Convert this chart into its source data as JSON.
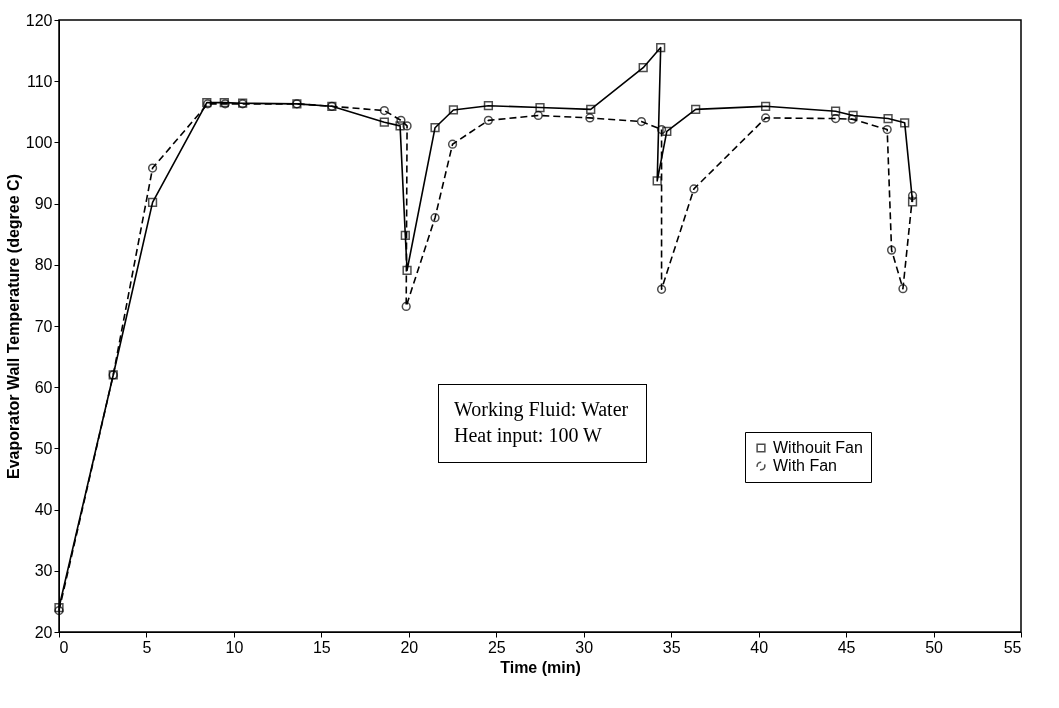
{
  "chart_data": {
    "type": "line",
    "xlabel": "Time (min)",
    "ylabel": "Evaporator Wall Temperature (degree C)",
    "xlim": [
      0,
      55
    ],
    "xticks": [
      0,
      5,
      10,
      15,
      20,
      25,
      30,
      35,
      40,
      45,
      50,
      55
    ],
    "ylim": [
      20,
      120
    ],
    "yticks": [
      20,
      30,
      40,
      50,
      60,
      70,
      80,
      90,
      100,
      110,
      120
    ],
    "grid": false,
    "legend": "bottom right",
    "annotations": [
      "Working Fluid: Water",
      "Heat input: 100 W"
    ],
    "series": [
      {
        "name": "Withouit Fan",
        "color": "#000000",
        "marker": "square",
        "line_style": "solid",
        "x": [
          0,
          3.1,
          5.35,
          8.45,
          9.45,
          10.5,
          13.6,
          15.6,
          18.6,
          19.5,
          19.8,
          19.9,
          21.5,
          22.55,
          24.55,
          27.5,
          30.4,
          33.4,
          34.4,
          34.2,
          34.75,
          36.4,
          40.4,
          44.4,
          45.4,
          47.4,
          48.35,
          48.8
        ],
        "values": [
          24,
          62,
          90.2,
          106.5,
          106.5,
          106.4,
          106.3,
          105.9,
          103.3,
          102.7,
          84.8,
          79.1,
          102.4,
          105.3,
          106,
          105.7,
          105.4,
          112.2,
          115.5,
          93.7,
          101.8,
          105.4,
          105.9,
          105.1,
          104.4,
          103.9,
          103.2,
          90.3
        ]
      },
      {
        "name": "With Fan",
        "color": "#000000",
        "marker": "circle",
        "line_style": "dashed",
        "x": [
          0,
          3.1,
          5.35,
          8.5,
          9.5,
          10.5,
          13.6,
          15.6,
          18.6,
          19.55,
          19.9,
          19.85,
          21.5,
          22.5,
          24.55,
          27.4,
          30.35,
          33.3,
          34.45,
          34.45,
          36.3,
          40.4,
          44.4,
          45.35,
          47.35,
          47.6,
          48.25,
          48.8
        ],
        "values": [
          23.5,
          62,
          95.8,
          106.3,
          106.3,
          106.3,
          106.3,
          105.9,
          105.2,
          103.6,
          102.7,
          73.2,
          87.7,
          99.7,
          103.6,
          104.4,
          104,
          103.4,
          102.1,
          76,
          92.4,
          104,
          103.9,
          103.8,
          102.1,
          82.4,
          76.1,
          91.3
        ]
      }
    ]
  }
}
